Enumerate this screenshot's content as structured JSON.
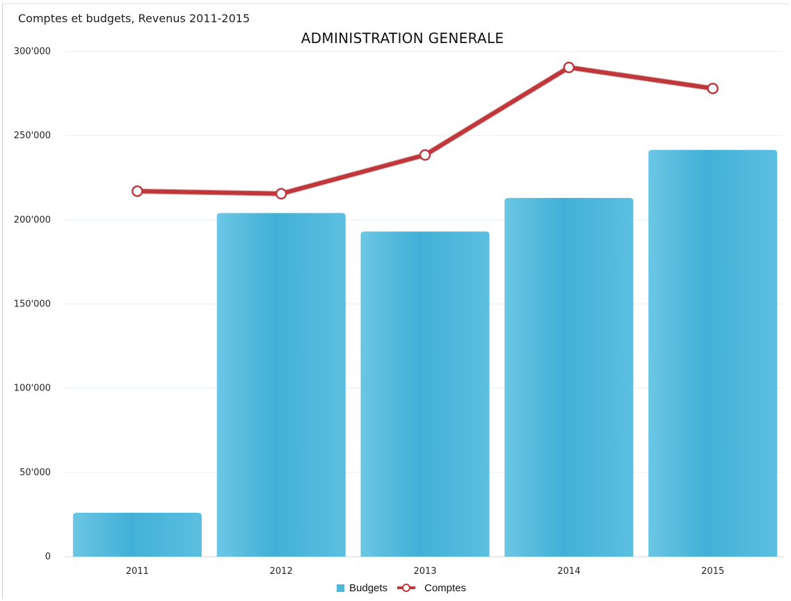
{
  "header": {
    "text": "Comptes et budgets, Revenus 2011-2015"
  },
  "chart_data": {
    "type": "bar",
    "title": "ADMINISTRATION GENERALE",
    "categories": [
      "2011",
      "2012",
      "2013",
      "2014",
      "2015"
    ],
    "series": [
      {
        "name": "Budgets",
        "kind": "bar",
        "color": "#4fb8d9",
        "values": [
          26000,
          204000,
          193000,
          213000,
          241500
        ]
      },
      {
        "name": "Comptes",
        "kind": "line",
        "color": "#c0373b",
        "values": [
          217000,
          215500,
          238500,
          290500,
          278000
        ]
      }
    ],
    "ylim": [
      0,
      300000
    ],
    "yticks": [
      0,
      50000,
      100000,
      150000,
      200000,
      250000,
      300000
    ],
    "ytick_labels": [
      "0",
      "50'000",
      "100'000",
      "150'000",
      "200'000",
      "250'000",
      "300'000"
    ],
    "xlabel": "",
    "ylabel": "",
    "grid": true,
    "legend_position": "bottom-center"
  }
}
